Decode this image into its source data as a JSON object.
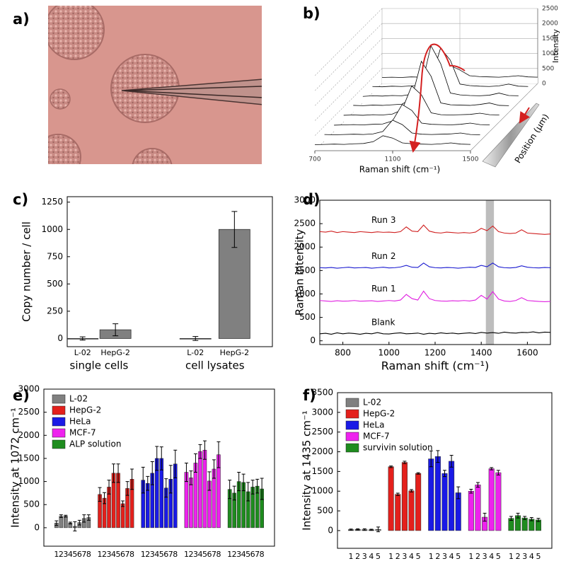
{
  "chart_data": [
    {
      "type": "image",
      "panel_label": "a)"
    },
    {
      "type": "waterfall",
      "panel_label": "b)",
      "x_label": "Raman shift (cm⁻¹)",
      "z_label": "Intensity",
      "depth_label": "Position (μm)",
      "x": [
        700,
        750,
        800,
        850,
        900,
        950,
        1000,
        1050,
        1100,
        1150,
        1200,
        1250,
        1300,
        1350,
        1400,
        1450,
        1500
      ],
      "xlim": [
        700,
        1500
      ],
      "xticks": [
        700,
        1100,
        1500
      ],
      "zlim": [
        0,
        2500
      ],
      "zticks": [
        0,
        500,
        1000,
        1500,
        2000,
        2500
      ],
      "color": "#000000",
      "series": [
        {
          "values": [
            200,
            210,
            200,
            220,
            210,
            230,
            300,
            600,
            450,
            260,
            230,
            220,
            210,
            230,
            260,
            220,
            210
          ]
        },
        {
          "values": [
            220,
            210,
            230,
            220,
            240,
            260,
            400,
            1500,
            1100,
            300,
            250,
            230,
            220,
            240,
            300,
            230,
            220
          ]
        },
        {
          "values": [
            210,
            230,
            220,
            240,
            230,
            280,
            500,
            1900,
            1300,
            320,
            260,
            240,
            230,
            250,
            320,
            240,
            230
          ]
        },
        {
          "values": [
            230,
            220,
            240,
            230,
            250,
            270,
            450,
            1700,
            1200,
            310,
            250,
            240,
            230,
            260,
            310,
            230,
            220
          ]
        },
        {
          "values": [
            220,
            230,
            220,
            240,
            230,
            260,
            400,
            1200,
            900,
            300,
            240,
            230,
            240,
            250,
            290,
            240,
            230
          ]
        },
        {
          "values": [
            210,
            220,
            230,
            220,
            240,
            250,
            350,
            900,
            700,
            280,
            240,
            230,
            220,
            240,
            280,
            230,
            220
          ]
        },
        {
          "values": [
            220,
            210,
            220,
            230,
            220,
            240,
            320,
            700,
            550,
            270,
            230,
            220,
            230,
            240,
            270,
            220,
            210
          ]
        },
        {
          "values": [
            200,
            210,
            220,
            210,
            230,
            240,
            300,
            500,
            420,
            260,
            230,
            220,
            210,
            230,
            260,
            220,
            210
          ]
        }
      ]
    },
    {
      "type": "bar",
      "panel_label": "c)",
      "y_label": "Copy number / cell",
      "categories": [
        "L-02",
        "HepG-2",
        "L-02",
        "HepG-2"
      ],
      "groups": [
        "single cells",
        "cell lysates"
      ],
      "values": [
        0,
        80,
        0,
        1000
      ],
      "errors": [
        15,
        55,
        18,
        165
      ],
      "color": "#808080",
      "ylim": [
        -75,
        1300
      ],
      "yticks": [
        0,
        250,
        500,
        750,
        1000,
        1250
      ]
    },
    {
      "type": "line",
      "panel_label": "d)",
      "x_label": "Raman shift (cm⁻¹)",
      "y_label": "Raman intensity",
      "x": [
        700,
        725,
        750,
        775,
        800,
        825,
        850,
        875,
        900,
        925,
        950,
        975,
        1000,
        1025,
        1050,
        1075,
        1100,
        1125,
        1150,
        1175,
        1200,
        1225,
        1250,
        1275,
        1300,
        1325,
        1350,
        1375,
        1400,
        1425,
        1450,
        1475,
        1500,
        1525,
        1550,
        1575,
        1600,
        1625,
        1650,
        1675,
        1700
      ],
      "xlim": [
        700,
        1700
      ],
      "xticks": [
        800,
        1000,
        1200,
        1400,
        1600
      ],
      "ylim": [
        -80,
        3000
      ],
      "yticks": [
        0,
        500,
        1000,
        1500,
        2000,
        2500,
        3000
      ],
      "highlight_band": [
        1420,
        1455
      ],
      "series": [
        {
          "name": "Blank",
          "color": "#000000",
          "values": [
            150,
            160,
            140,
            170,
            150,
            165,
            155,
            140,
            160,
            150,
            175,
            150,
            145,
            160,
            170,
            150,
            155,
            165,
            140,
            160,
            150,
            170,
            155,
            165,
            150,
            160,
            170,
            155,
            180,
            165,
            175,
            160,
            185,
            170,
            165,
            180,
            175,
            190,
            170,
            185,
            180
          ]
        },
        {
          "name": "Run 1",
          "color": "#e020e0",
          "values": [
            860,
            850,
            840,
            855,
            845,
            850,
            860,
            845,
            850,
            855,
            840,
            850,
            860,
            850,
            870,
            990,
            900,
            870,
            1060,
            900,
            860,
            850,
            845,
            855,
            850,
            860,
            850,
            870,
            970,
            890,
            1050,
            890,
            850,
            840,
            860,
            920,
            860,
            850,
            840,
            835,
            840
          ]
        },
        {
          "name": "Run 2",
          "color": "#1a1ad0",
          "values": [
            1560,
            1555,
            1565,
            1550,
            1560,
            1570,
            1555,
            1560,
            1565,
            1550,
            1560,
            1570,
            1555,
            1560,
            1575,
            1610,
            1570,
            1565,
            1660,
            1580,
            1560,
            1555,
            1565,
            1560,
            1550,
            1560,
            1570,
            1565,
            1610,
            1580,
            1660,
            1580,
            1560,
            1555,
            1565,
            1600,
            1570,
            1560,
            1555,
            1565,
            1560
          ]
        },
        {
          "name": "Run 3",
          "color": "#d02020",
          "values": [
            2330,
            2320,
            2340,
            2310,
            2330,
            2320,
            2310,
            2330,
            2320,
            2310,
            2325,
            2315,
            2320,
            2310,
            2330,
            2430,
            2340,
            2330,
            2470,
            2340,
            2310,
            2300,
            2320,
            2310,
            2300,
            2310,
            2300,
            2320,
            2400,
            2350,
            2450,
            2330,
            2300,
            2290,
            2300,
            2370,
            2300,
            2290,
            2280,
            2270,
            2280
          ]
        }
      ]
    },
    {
      "type": "grouped_bar",
      "panel_label": "e)",
      "y_label": "Intensity at 1072 cm⁻¹",
      "categories": [
        "1",
        "2",
        "3",
        "4",
        "5",
        "6",
        "7",
        "8"
      ],
      "ylim": [
        -400,
        3000
      ],
      "yticks": [
        0,
        500,
        1000,
        1500,
        2000,
        2500,
        3000
      ],
      "legend": "upper left",
      "series": [
        {
          "name": "L-02",
          "color": "#808080",
          "values": [
            100,
            250,
            250,
            100,
            30,
            110,
            200,
            220
          ],
          "errors": [
            50,
            30,
            20,
            20,
            100,
            50,
            80,
            60
          ]
        },
        {
          "name": "HepG-2",
          "color": "#e4201c",
          "values": [
            720,
            640,
            880,
            1180,
            1180,
            520,
            850,
            1050
          ],
          "errors": [
            150,
            120,
            150,
            200,
            200,
            60,
            150,
            220
          ]
        },
        {
          "name": "HeLa",
          "color": "#1a1ae6",
          "values": [
            1030,
            960,
            1180,
            1500,
            1500,
            860,
            1050,
            1380
          ],
          "errors": [
            280,
            150,
            250,
            260,
            250,
            200,
            300,
            300
          ]
        },
        {
          "name": "MCF-7",
          "color": "#ee22ee",
          "values": [
            1200,
            1080,
            1400,
            1650,
            1680,
            1010,
            1270,
            1580
          ],
          "errors": [
            200,
            150,
            200,
            150,
            200,
            200,
            200,
            280
          ]
        },
        {
          "name": "ALP solution",
          "color": "#1e8c1e",
          "values": [
            830,
            750,
            1000,
            980,
            780,
            880,
            900,
            840
          ],
          "errors": [
            200,
            150,
            200,
            180,
            200,
            150,
            150,
            230
          ]
        }
      ]
    },
    {
      "type": "grouped_bar",
      "panel_label": "f)",
      "y_label": "Intensity at 1435 cm⁻¹",
      "categories": [
        "1",
        "2",
        "3",
        "4",
        "5"
      ],
      "ylim": [
        -450,
        3500
      ],
      "yticks": [
        0,
        500,
        1000,
        1500,
        2000,
        2500,
        3000,
        3500
      ],
      "legend": "upper left",
      "series": [
        {
          "name": "L-02",
          "color": "#808080",
          "values": [
            25,
            30,
            25,
            20,
            30
          ],
          "errors": [
            15,
            15,
            20,
            15,
            60
          ]
        },
        {
          "name": "HepG-2",
          "color": "#e4201c",
          "values": [
            1620,
            920,
            1730,
            1010,
            1450
          ],
          "errors": [
            20,
            30,
            30,
            30,
            20
          ]
        },
        {
          "name": "HeLa",
          "color": "#1a1ae6",
          "values": [
            1820,
            1880,
            1450,
            1760,
            960
          ],
          "errors": [
            200,
            150,
            80,
            150,
            150
          ]
        },
        {
          "name": "MCF-7",
          "color": "#ee22ee",
          "values": [
            1000,
            1160,
            340,
            1570,
            1470
          ],
          "errors": [
            50,
            60,
            100,
            30,
            60
          ]
        },
        {
          "name": "survivin solution",
          "color": "#1e8c1e",
          "values": [
            310,
            380,
            320,
            290,
            270
          ],
          "errors": [
            50,
            60,
            40,
            40,
            40
          ]
        }
      ]
    }
  ]
}
